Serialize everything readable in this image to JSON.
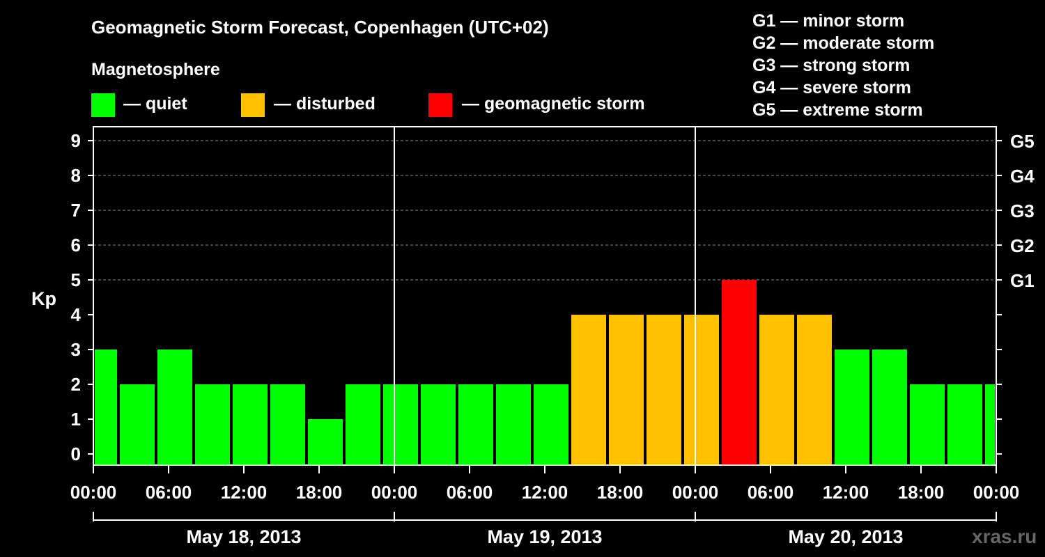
{
  "chart_data": {
    "type": "bar",
    "title": "Geomagnetic Storm Forecast, Copenhagen (UTC+02)",
    "ylabel": "Kp",
    "ylim": [
      0,
      9
    ],
    "yticks": [
      "0",
      "1",
      "2",
      "3",
      "4",
      "5",
      "6",
      "7",
      "8",
      "9"
    ],
    "right_ticks": [
      {
        "kp": 5,
        "label": "G1"
      },
      {
        "kp": 6,
        "label": "G2"
      },
      {
        "kp": 7,
        "label": "G3"
      },
      {
        "kp": 8,
        "label": "G4"
      },
      {
        "kp": 9,
        "label": "G5"
      }
    ],
    "xtick_labels": [
      "00:00",
      "06:00",
      "12:00",
      "18:00",
      "00:00",
      "06:00",
      "12:00",
      "18:00",
      "00:00",
      "06:00",
      "12:00",
      "18:00",
      "00:00"
    ],
    "days": [
      "May 18, 2013",
      "May 19, 2013",
      "May 20, 2013"
    ],
    "bars": [
      {
        "start": "May 18 00:00",
        "end": "May 18 02:00",
        "kp": 3,
        "level": "quiet"
      },
      {
        "start": "May 18 02:00",
        "end": "May 18 05:00",
        "kp": 2,
        "level": "quiet"
      },
      {
        "start": "May 18 05:00",
        "end": "May 18 08:00",
        "kp": 3,
        "level": "quiet"
      },
      {
        "start": "May 18 08:00",
        "end": "May 18 11:00",
        "kp": 2,
        "level": "quiet"
      },
      {
        "start": "May 18 11:00",
        "end": "May 18 14:00",
        "kp": 2,
        "level": "quiet"
      },
      {
        "start": "May 18 14:00",
        "end": "May 18 17:00",
        "kp": 2,
        "level": "quiet"
      },
      {
        "start": "May 18 17:00",
        "end": "May 18 20:00",
        "kp": 1,
        "level": "quiet"
      },
      {
        "start": "May 18 20:00",
        "end": "May 18 23:00",
        "kp": 2,
        "level": "quiet"
      },
      {
        "start": "May 18 23:00",
        "end": "May 19 02:00",
        "kp": 2,
        "level": "quiet"
      },
      {
        "start": "May 19 02:00",
        "end": "May 19 05:00",
        "kp": 2,
        "level": "quiet"
      },
      {
        "start": "May 19 05:00",
        "end": "May 19 08:00",
        "kp": 2,
        "level": "quiet"
      },
      {
        "start": "May 19 08:00",
        "end": "May 19 11:00",
        "kp": 2,
        "level": "quiet"
      },
      {
        "start": "May 19 11:00",
        "end": "May 19 14:00",
        "kp": 2,
        "level": "quiet"
      },
      {
        "start": "May 19 14:00",
        "end": "May 19 17:00",
        "kp": 4,
        "level": "disturbed"
      },
      {
        "start": "May 19 17:00",
        "end": "May 19 20:00",
        "kp": 4,
        "level": "disturbed"
      },
      {
        "start": "May 19 20:00",
        "end": "May 19 23:00",
        "kp": 4,
        "level": "disturbed"
      },
      {
        "start": "May 19 23:00",
        "end": "May 20 02:00",
        "kp": 4,
        "level": "disturbed"
      },
      {
        "start": "May 20 02:00",
        "end": "May 20 05:00",
        "kp": 5,
        "level": "geomagnetic storm"
      },
      {
        "start": "May 20 05:00",
        "end": "May 20 08:00",
        "kp": 4,
        "level": "disturbed"
      },
      {
        "start": "May 20 08:00",
        "end": "May 20 11:00",
        "kp": 4,
        "level": "disturbed"
      },
      {
        "start": "May 20 11:00",
        "end": "May 20 14:00",
        "kp": 3,
        "level": "quiet"
      },
      {
        "start": "May 20 14:00",
        "end": "May 20 17:00",
        "kp": 3,
        "level": "quiet"
      },
      {
        "start": "May 20 17:00",
        "end": "May 20 20:00",
        "kp": 2,
        "level": "quiet"
      },
      {
        "start": "May 20 20:00",
        "end": "May 20 23:00",
        "kp": 2,
        "level": "quiet"
      },
      {
        "start": "May 20 23:00",
        "end": "May 21 00:00",
        "kp": 2,
        "level": "quiet"
      }
    ],
    "grid": true,
    "legend_position": "top"
  },
  "legend": {
    "heading": "Magnetosphere",
    "items": [
      {
        "label": "— quiet",
        "color": "#00ff00"
      },
      {
        "label": "— disturbed",
        "color": "#ffc000"
      },
      {
        "label": "— geomagnetic storm",
        "color": "#ff0000"
      }
    ]
  },
  "g_scale": [
    "G1 — minor storm",
    "G2 — moderate storm",
    "G3 — strong storm",
    "G4 — severe storm",
    "G5 — extreme storm"
  ],
  "colors": {
    "quiet": "#00ff00",
    "disturbed": "#ffc000",
    "storm": "#ff0000"
  },
  "watermark": "xras.ru"
}
